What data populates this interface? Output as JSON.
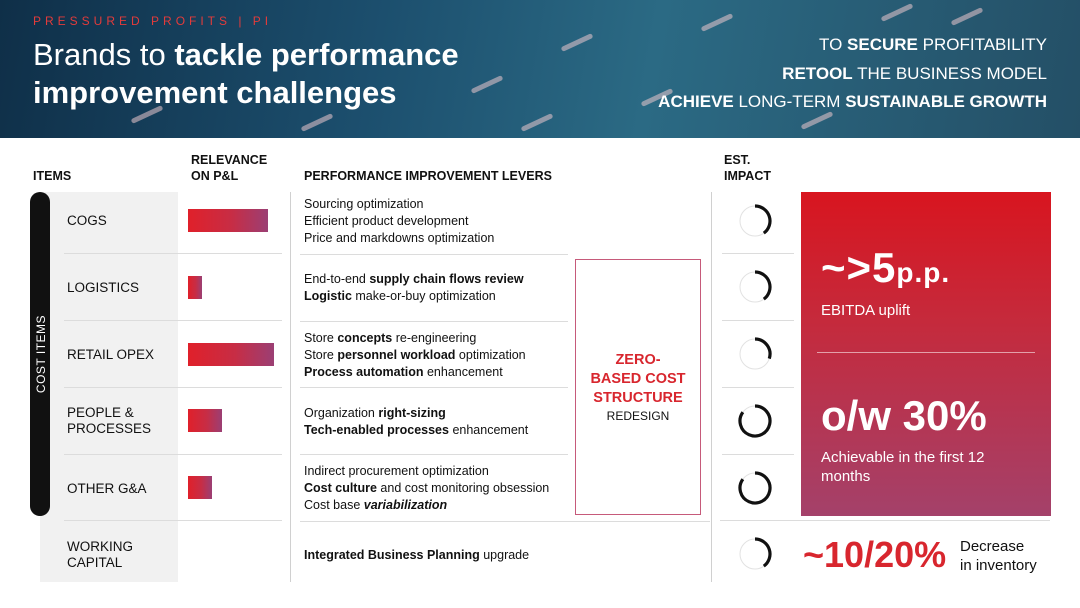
{
  "header": {
    "kicker": "PRESSURED PROFITS | PI",
    "title_line1_plain": "Brands to ",
    "title_line1_bold": "tackle performance",
    "title_line2_bold": "improvement challenges",
    "goals": [
      {
        "bold": "TO ",
        "b": "SECURE",
        "rest": " PROFITABILITY"
      },
      {
        "b": "RETOOL",
        "rest": " THE BUSINESS MODEL"
      },
      {
        "b": "ACHIEVE",
        "rest": " LONG-TERM ",
        "b2": "SUSTAINABLE GROWTH"
      }
    ]
  },
  "columns": {
    "items": "ITEMS",
    "relevance_1": "RELEVANCE",
    "relevance_2": "ON P&L",
    "levers": "PERFORMANCE IMPROVEMENT LEVERS",
    "impact_1": "EST.",
    "impact_2": "IMPACT"
  },
  "cost_items_label": "COST ITEMS",
  "rows": [
    {
      "item": "COGS",
      "relevance": 1.0
    },
    {
      "item": "LOGISTICS",
      "relevance": 0.17
    },
    {
      "item": "RETAIL OPEX",
      "relevance": 1.07
    },
    {
      "item_l1": "PEOPLE &",
      "item_l2": "PROCESSES",
      "relevance": 0.43
    },
    {
      "item": "OTHER G&A",
      "relevance": 0.3
    },
    {
      "item_l1": "WORKING",
      "item_l2": "CAPITAL"
    }
  ],
  "levers": {
    "cogs": [
      "Sourcing optimization",
      "Efficient product development",
      "Price and markdowns optimization"
    ],
    "logistics": {
      "l1_pre": "End-to-end ",
      "l1_b": "supply chain flows review",
      "l2_b": "Logistic",
      "l2_post": " make-or-buy optimization"
    },
    "retail": {
      "l1_pre": "Store ",
      "l1_b": "concepts",
      "l1_post": " re-engineering",
      "l2_pre": "Store ",
      "l2_b": "personnel workload",
      "l2_post": " optimization",
      "l3_b": "Process automation",
      "l3_post": " enhancement"
    },
    "people": {
      "l1_pre": "Organization ",
      "l1_b": "right-sizing",
      "l2_b": "Tech-enabled processes",
      "l2_post": " enhancement"
    },
    "other": {
      "l1": "Indirect procurement optimization",
      "l2_b": "Cost culture",
      "l2_post": " and cost monitoring obsession",
      "l3_pre": "Cost base ",
      "l3_i": "variabilization"
    },
    "wc": {
      "b": "Integrated Business Planning",
      "post": " upgrade"
    }
  },
  "zero_based": {
    "l1": "ZERO-",
    "l2": "BASED COST",
    "l3": "STRUCTURE",
    "l4": "REDESIGN"
  },
  "gauges": [
    0.4,
    0.4,
    0.3,
    0.85,
    0.85,
    0.4
  ],
  "impact": {
    "big1": "~>5",
    "big1_unit": "p.p.",
    "text1": "EBITDA uplift",
    "big2": "o/w 30%",
    "text2": "Achievable in the first 12 months",
    "wc_big": "~10/20%",
    "wc_text_1": "Decrease",
    "wc_text_2": "in inventory"
  },
  "colors": {
    "accent_red": "#d8262e",
    "gradient_end": "#a4416a",
    "header_bg": "#1c4f6e"
  }
}
